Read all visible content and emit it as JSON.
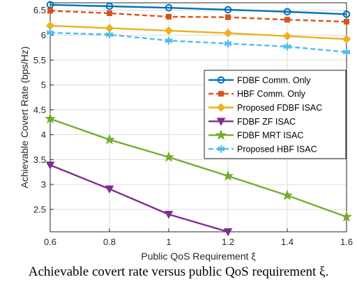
{
  "caption": "Achievable covert rate versus public QoS requirement ξ.",
  "chart_data": {
    "type": "line",
    "xlabel": "Public QoS Requirement ξ",
    "ylabel": "Achievable Covert Rate (bps/Hz)",
    "xlim": [
      0.6,
      1.6
    ],
    "ylim": [
      2.05,
      6.65
    ],
    "xticks": [
      "0.6",
      "0.8",
      "1",
      "1.2",
      "1.4",
      "1.6"
    ],
    "yticks": [
      "2.5",
      "3",
      "3.5",
      "4",
      "4.5",
      "5",
      "5.5",
      "6",
      "6.5"
    ],
    "grid": true,
    "legend_position": "center-right",
    "series": [
      {
        "name": "FDBF Comm. Only",
        "color": "#0072BD",
        "dash": "solid",
        "marker": "circle",
        "x": [
          0.6,
          0.8,
          1.0,
          1.2,
          1.4,
          1.6
        ],
        "values": [
          6.61,
          6.58,
          6.55,
          6.51,
          6.47,
          6.42
        ]
      },
      {
        "name": "HBF Comm. Only",
        "color": "#D95319",
        "dash": "dashed",
        "marker": "square",
        "x": [
          0.6,
          0.8,
          1.0,
          1.2,
          1.4,
          1.6
        ],
        "values": [
          6.49,
          6.44,
          6.37,
          6.36,
          6.31,
          6.27
        ]
      },
      {
        "name": "Proposed FDBF ISAC",
        "color": "#EDB120",
        "dash": "solid",
        "marker": "diamond",
        "x": [
          0.6,
          0.8,
          1.0,
          1.2,
          1.4,
          1.6
        ],
        "values": [
          6.19,
          6.14,
          6.09,
          6.04,
          5.98,
          5.92
        ]
      },
      {
        "name": "FDBF ZF ISAC",
        "color": "#7E2F8E",
        "dash": "solid",
        "marker": "triangle-down",
        "x": [
          0.6,
          0.8,
          1.0,
          1.2
        ],
        "values": [
          3.39,
          2.91,
          2.4,
          2.05
        ]
      },
      {
        "name": "FDBF MRT ISAC",
        "color": "#77AC30",
        "dash": "solid",
        "marker": "star",
        "x": [
          0.6,
          0.8,
          1.0,
          1.2,
          1.4,
          1.6
        ],
        "values": [
          4.32,
          3.9,
          3.55,
          3.17,
          2.78,
          2.35
        ]
      },
      {
        "name": "Proposed HBF ISAC",
        "color": "#4DBEEE",
        "dash": "dashed",
        "marker": "asterisk",
        "x": [
          0.6,
          0.8,
          1.0,
          1.2,
          1.4,
          1.6
        ],
        "values": [
          6.05,
          6.01,
          5.89,
          5.83,
          5.77,
          5.66
        ]
      }
    ]
  }
}
